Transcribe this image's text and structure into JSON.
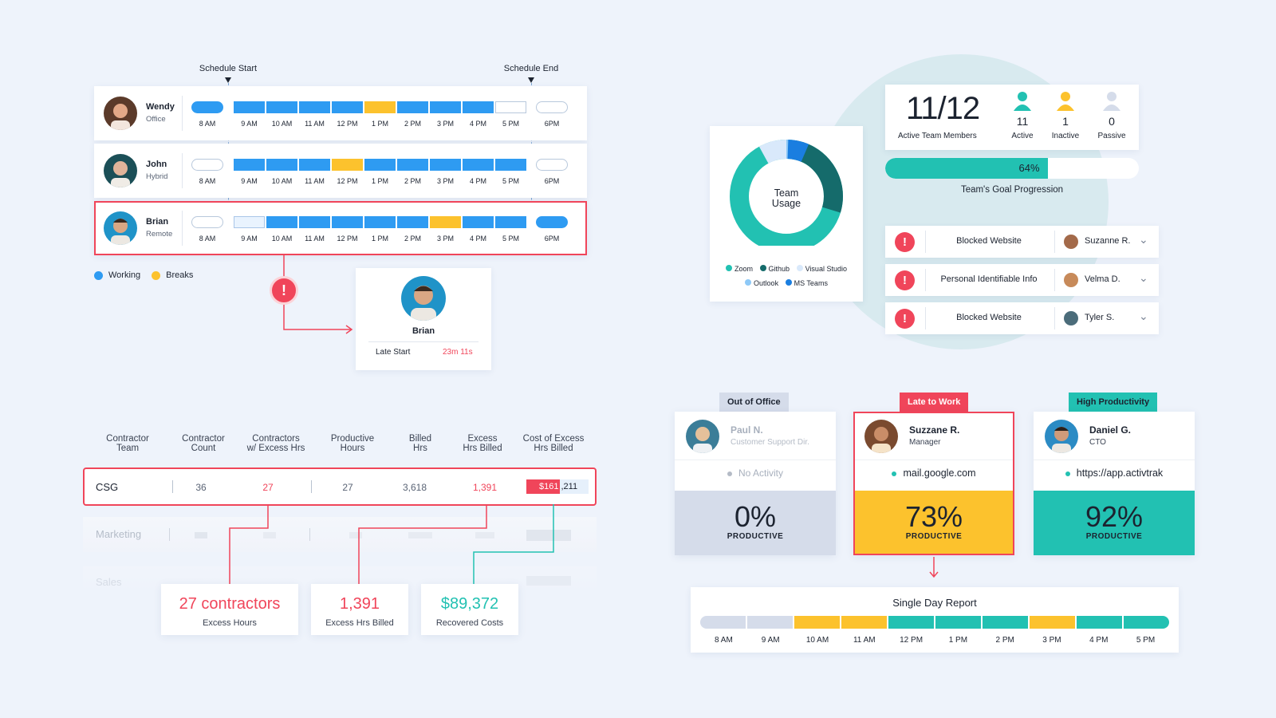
{
  "schedule": {
    "start_label": "Schedule Start",
    "end_label": "Schedule End",
    "people": [
      {
        "name": "Wendy",
        "mode": "Office",
        "hours": [
          "8 AM",
          "9 AM",
          "10 AM",
          "11 AM",
          "12 PM",
          "1 PM",
          "2 PM",
          "3 PM",
          "4 PM",
          "5 PM",
          "6PM"
        ]
      },
      {
        "name": "John",
        "mode": "Hybrid",
        "hours": [
          "8 AM",
          "9 AM",
          "10 AM",
          "11 AM",
          "12 PM",
          "1 PM",
          "2 PM",
          "3 PM",
          "4 PM",
          "5 PM",
          "6PM"
        ]
      },
      {
        "name": "Brian",
        "mode": "Remote",
        "hours": [
          "8 AM",
          "9 AM",
          "10 AM",
          "11 AM",
          "12 PM",
          "1 PM",
          "2 PM",
          "3 PM",
          "4 PM",
          "5 PM",
          "6PM"
        ]
      }
    ],
    "legend": {
      "working": "Working",
      "breaks": "Breaks"
    },
    "colors": {
      "working": "#2e9bf2",
      "breaks": "#fcc22d",
      "alert": "#f0455a"
    }
  },
  "late_popup": {
    "name": "Brian",
    "label": "Late Start",
    "value": "23m 11s"
  },
  "team_usage": {
    "center_line1": "Team",
    "center_line2": "Usage",
    "legend": [
      "Zoom",
      "Github",
      "Visual Studio",
      "Outlook",
      "MS Teams"
    ],
    "colors": {
      "Zoom": "#22c1b2",
      "Github": "#156b6b",
      "Visual Studio": "#d9e9fb",
      "Outlook": "#8ec9f7",
      "MS Teams": "#1a7ee0"
    }
  },
  "team_members": {
    "ratio": "11/12",
    "ratio_label": "Active Team Members",
    "active_count": "11",
    "active_label": "Active",
    "inactive_count": "1",
    "inactive_label": "Inactive",
    "passive_count": "0",
    "passive_label": "Passive",
    "goal_percent_text": "64%",
    "goal_percent": 64,
    "goal_label": "Team's Goal Progression"
  },
  "alerts": [
    {
      "title": "Blocked Website",
      "user": "Suzanne R."
    },
    {
      "title": "Personal Identifiable Info",
      "user": "Velma D."
    },
    {
      "title": "Blocked Website",
      "user": "Tyler S."
    }
  ],
  "contractor_table": {
    "headers": [
      [
        "Contractor",
        "Team"
      ],
      [
        "Contractor",
        "Count"
      ],
      [
        "Contractors",
        "w/ Excess Hrs"
      ],
      [
        "Productive",
        "Hours"
      ],
      [
        "Billed",
        "Hrs"
      ],
      [
        "Excess",
        "Hrs Billed"
      ],
      [
        "Cost of Excess",
        "Hrs Billed"
      ]
    ],
    "row": {
      "team": "CSG",
      "count": "36",
      "excess_contractors": "27",
      "productive": "27",
      "billed": "3,618",
      "excess_billed": "1,391",
      "cost_hl": "$161",
      "cost_rest": ",211"
    },
    "faded_rows": [
      "Marketing",
      "Sales"
    ]
  },
  "callouts": [
    {
      "value": "27 contractors",
      "label": "Excess Hours"
    },
    {
      "value": "1,391",
      "label": "Excess Hrs Billed"
    },
    {
      "value": "$89,372",
      "label": "Recovered Costs"
    }
  ],
  "productivity": [
    {
      "tag": "Out of Office",
      "name": "Paul N.",
      "role": "Customer Support Dir.",
      "activity": "No Activity",
      "percent": "0%",
      "label": "PRODUCTIVE"
    },
    {
      "tag": "Late to Work",
      "name": "Suzzane R.",
      "role": "Manager",
      "activity": "mail.google.com",
      "percent": "73%",
      "label": "PRODUCTIVE"
    },
    {
      "tag": "High Productivity",
      "name": "Daniel G.",
      "role": "CTO",
      "activity": "https://app.activtrak",
      "percent": "92%",
      "label": "PRODUCTIVE"
    }
  ],
  "single_day_report": {
    "title": "Single Day Report",
    "hours": [
      "8 AM",
      "9 AM",
      "10 AM",
      "11 AM",
      "12 PM",
      "1 PM",
      "2 PM",
      "3 PM",
      "4 PM",
      "5 PM"
    ],
    "colors": {
      "idle": "#d5dcea",
      "late": "#fcc22d",
      "productive": "#22c1b2"
    }
  }
}
